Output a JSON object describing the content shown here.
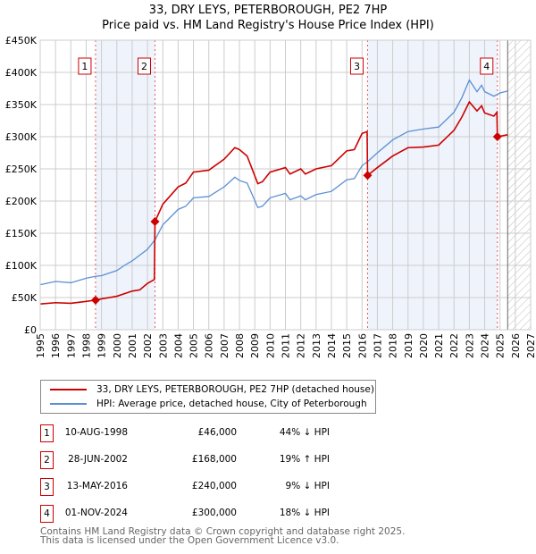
{
  "chart_data": {
    "type": "line",
    "title": "33, DRY LEYS, PETERBOROUGH, PE2 7HP",
    "subtitle": "Price paid vs. HM Land Registry's House Price Index (HPI)",
    "xlim": [
      1995,
      2027
    ],
    "ylim": [
      0,
      450000
    ],
    "yticks": [
      0,
      50000,
      100000,
      150000,
      200000,
      250000,
      300000,
      350000,
      400000,
      450000
    ],
    "ytick_labels": [
      "£0",
      "£50K",
      "£100K",
      "£150K",
      "£200K",
      "£250K",
      "£300K",
      "£350K",
      "£400K",
      "£450K"
    ],
    "xticks": [
      1995,
      1996,
      1997,
      1998,
      1999,
      2000,
      2001,
      2002,
      2003,
      2004,
      2005,
      2006,
      2007,
      2008,
      2009,
      2010,
      2011,
      2012,
      2013,
      2014,
      2015,
      2016,
      2017,
      2018,
      2019,
      2020,
      2021,
      2022,
      2023,
      2024,
      2025,
      2026,
      2027
    ],
    "grid": true,
    "series": [
      {
        "name": "33, DRY LEYS, PETERBOROUGH, PE2 7HP (detached house)",
        "color": "#cc0000",
        "x": [
          1995,
          1996,
          1997,
          1998,
          1998.6,
          1999,
          2000,
          2001,
          2001.5,
          2002,
          2002.45,
          2002.49,
          2003,
          2004,
          2004.5,
          2005,
          2006,
          2007,
          2007.7,
          2008,
          2008.5,
          2009.2,
          2009.5,
          2010,
          2011,
          2011.3,
          2012,
          2012.3,
          2013,
          2014,
          2015,
          2015.5,
          2016,
          2016.33,
          2016.36,
          2017,
          2018,
          2019,
          2020,
          2021,
          2022,
          2022.5,
          2023,
          2023.5,
          2023.8,
          2024,
          2024.6,
          2024.8,
          2024.83,
          2025.5
        ],
        "y": [
          40000,
          42000,
          41000,
          44000,
          46000,
          48000,
          52000,
          60000,
          62000,
          72000,
          78000,
          168000,
          195000,
          222000,
          228000,
          245000,
          248000,
          265000,
          283000,
          280000,
          270000,
          227000,
          230000,
          245000,
          252000,
          242000,
          250000,
          242000,
          250000,
          255000,
          278000,
          280000,
          305000,
          308000,
          240000,
          252000,
          270000,
          283000,
          284000,
          287000,
          310000,
          330000,
          354000,
          340000,
          348000,
          337000,
          332000,
          338000,
          300000,
          303000
        ]
      },
      {
        "name": "HPI: Average price, detached house, City of Peterborough",
        "color": "#5b8fd4",
        "x": [
          1995,
          1996,
          1997,
          1998,
          1998.6,
          1999,
          2000,
          2000.5,
          2001,
          2002,
          2002.5,
          2003,
          2004,
          2004.5,
          2005,
          2006,
          2007,
          2007.7,
          2008,
          2008.5,
          2009.2,
          2009.5,
          2010,
          2011,
          2011.3,
          2012,
          2012.3,
          2013,
          2014,
          2015,
          2015.5,
          2016,
          2016.4,
          2017,
          2018,
          2019,
          2020,
          2021,
          2022,
          2022.5,
          2023,
          2023.5,
          2023.8,
          2024,
          2024.6,
          2025,
          2025.5
        ],
        "y": [
          70000,
          75000,
          73000,
          80000,
          83000,
          84000,
          92000,
          100000,
          107000,
          125000,
          140000,
          163000,
          187000,
          192000,
          205000,
          207000,
          222000,
          237000,
          232000,
          228000,
          190000,
          192000,
          205000,
          212000,
          202000,
          208000,
          202000,
          210000,
          215000,
          233000,
          235000,
          255000,
          262000,
          275000,
          295000,
          308000,
          312000,
          315000,
          338000,
          360000,
          388000,
          370000,
          380000,
          370000,
          363000,
          368000,
          371000
        ]
      }
    ],
    "sales": [
      {
        "n": "1",
        "x": 1998.61,
        "y": 46000,
        "date": "10-AUG-1998",
        "price": "£46,000",
        "hpi": "44% ↓ HPI"
      },
      {
        "n": "2",
        "x": 2002.49,
        "y": 168000,
        "date": "28-JUN-2002",
        "price": "£168,000",
        "hpi": "19% ↑ HPI"
      },
      {
        "n": "3",
        "x": 2016.36,
        "y": 240000,
        "date": "13-MAY-2016",
        "price": "£240,000",
        "hpi": "9% ↓ HPI"
      },
      {
        "n": "4",
        "x": 2024.83,
        "y": 300000,
        "date": "01-NOV-2024",
        "price": "£300,000",
        "hpi": "18% ↓ HPI"
      }
    ],
    "shaded_ranges": [
      [
        1998.61,
        2002.49
      ],
      [
        2016.36,
        2024.83
      ]
    ],
    "forecast_from": 2025.5
  },
  "legend": {
    "property": "33, DRY LEYS, PETERBOROUGH, PE2 7HP (detached house)",
    "hpi": "HPI: Average price, detached house, City of Peterborough"
  },
  "footer": {
    "line1": "Contains HM Land Registry data © Crown copyright and database right 2025.",
    "line2": "This data is licensed under the Open Government Licence v3.0."
  }
}
